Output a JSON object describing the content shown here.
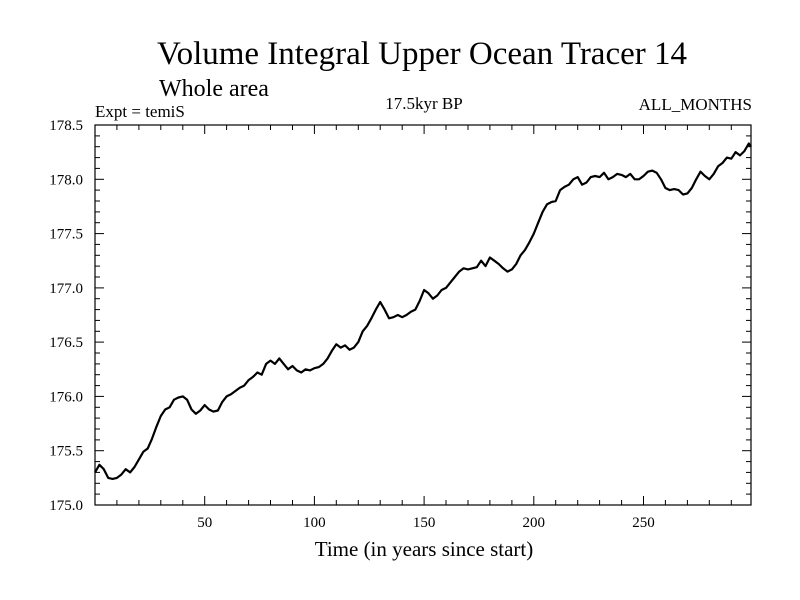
{
  "chart_data": {
    "type": "line",
    "title": "Volume Integral Upper Ocean Tracer 14",
    "subtitle": "Whole area",
    "left_note": "Expt = temiS",
    "center_note": "17.5kyr BP",
    "right_note": "ALL_MONTHS",
    "xlabel": "Time (in years since start)",
    "ylabel": "",
    "xlim": [
      0,
      299
    ],
    "ylim": [
      175.0,
      178.5
    ],
    "xticks": [
      50,
      100,
      150,
      200,
      250
    ],
    "xtick_labels": [
      "50",
      "100",
      "150",
      "200",
      "250"
    ],
    "yticks": [
      175.0,
      175.5,
      176.0,
      176.5,
      177.0,
      177.5,
      178.0,
      178.5
    ],
    "ytick_labels": [
      "175.0",
      "175.5",
      "176.0",
      "176.5",
      "177.0",
      "177.5",
      "178.0",
      "178.5"
    ],
    "series": [
      {
        "name": "tracer14",
        "color": "#000000",
        "x": [
          0,
          2,
          4,
          6,
          8,
          10,
          12,
          14,
          16,
          18,
          20,
          22,
          24,
          26,
          28,
          30,
          32,
          34,
          36,
          38,
          40,
          42,
          44,
          46,
          48,
          50,
          52,
          54,
          56,
          58,
          60,
          62,
          64,
          66,
          68,
          70,
          72,
          74,
          76,
          78,
          80,
          82,
          84,
          86,
          88,
          90,
          92,
          94,
          96,
          98,
          100,
          102,
          104,
          106,
          108,
          110,
          112,
          114,
          116,
          118,
          120,
          122,
          124,
          126,
          128,
          130,
          132,
          134,
          136,
          138,
          140,
          142,
          144,
          146,
          148,
          150,
          152,
          154,
          156,
          158,
          160,
          162,
          164,
          166,
          168,
          170,
          172,
          174,
          176,
          178,
          180,
          182,
          184,
          186,
          188,
          190,
          192,
          194,
          196,
          198,
          200,
          202,
          204,
          206,
          208,
          210,
          212,
          214,
          216,
          218,
          220,
          222,
          224,
          226,
          228,
          230,
          232,
          234,
          236,
          238,
          240,
          242,
          244,
          246,
          248,
          250,
          252,
          254,
          256,
          258,
          260,
          262,
          264,
          266,
          268,
          270,
          272,
          274,
          276,
          278,
          280,
          282,
          284,
          286,
          288,
          290,
          292,
          294,
          296,
          298,
          299
        ],
        "y": [
          175.3,
          175.37,
          175.33,
          175.25,
          175.24,
          175.25,
          175.28,
          175.33,
          175.3,
          175.35,
          175.42,
          175.49,
          175.52,
          175.61,
          175.72,
          175.82,
          175.88,
          175.9,
          175.97,
          175.99,
          176.0,
          175.97,
          175.88,
          175.84,
          175.87,
          175.92,
          175.88,
          175.86,
          175.87,
          175.95,
          176.0,
          176.02,
          176.05,
          176.08,
          176.1,
          176.15,
          176.18,
          176.22,
          176.2,
          176.3,
          176.33,
          176.3,
          176.35,
          176.3,
          176.25,
          176.28,
          176.24,
          176.22,
          176.25,
          176.24,
          176.26,
          176.27,
          176.3,
          176.35,
          176.42,
          176.48,
          176.45,
          176.47,
          176.43,
          176.45,
          176.5,
          176.6,
          176.65,
          176.72,
          176.8,
          176.87,
          176.8,
          176.72,
          176.73,
          176.75,
          176.73,
          176.75,
          176.78,
          176.8,
          176.88,
          176.98,
          176.95,
          176.9,
          176.93,
          176.98,
          177.0,
          177.05,
          177.1,
          177.15,
          177.18,
          177.17,
          177.18,
          177.19,
          177.25,
          177.2,
          177.28,
          177.25,
          177.22,
          177.18,
          177.15,
          177.17,
          177.22,
          177.3,
          177.35,
          177.42,
          177.5,
          177.6,
          177.7,
          177.77,
          177.79,
          177.8,
          177.9,
          177.93,
          177.95,
          178.0,
          178.02,
          177.95,
          177.97,
          178.02,
          178.03,
          178.02,
          178.06,
          178.0,
          178.02,
          178.05,
          178.04,
          178.02,
          178.05,
          178.0,
          178.0,
          178.03,
          178.07,
          178.08,
          178.06,
          178.0,
          177.92,
          177.9,
          177.91,
          177.9,
          177.86,
          177.87,
          177.92,
          178.0,
          178.07,
          178.03,
          178.0,
          178.05,
          178.12,
          178.15,
          178.2,
          178.19,
          178.25,
          178.22,
          178.26,
          178.33,
          178.3
        ]
      }
    ]
  }
}
